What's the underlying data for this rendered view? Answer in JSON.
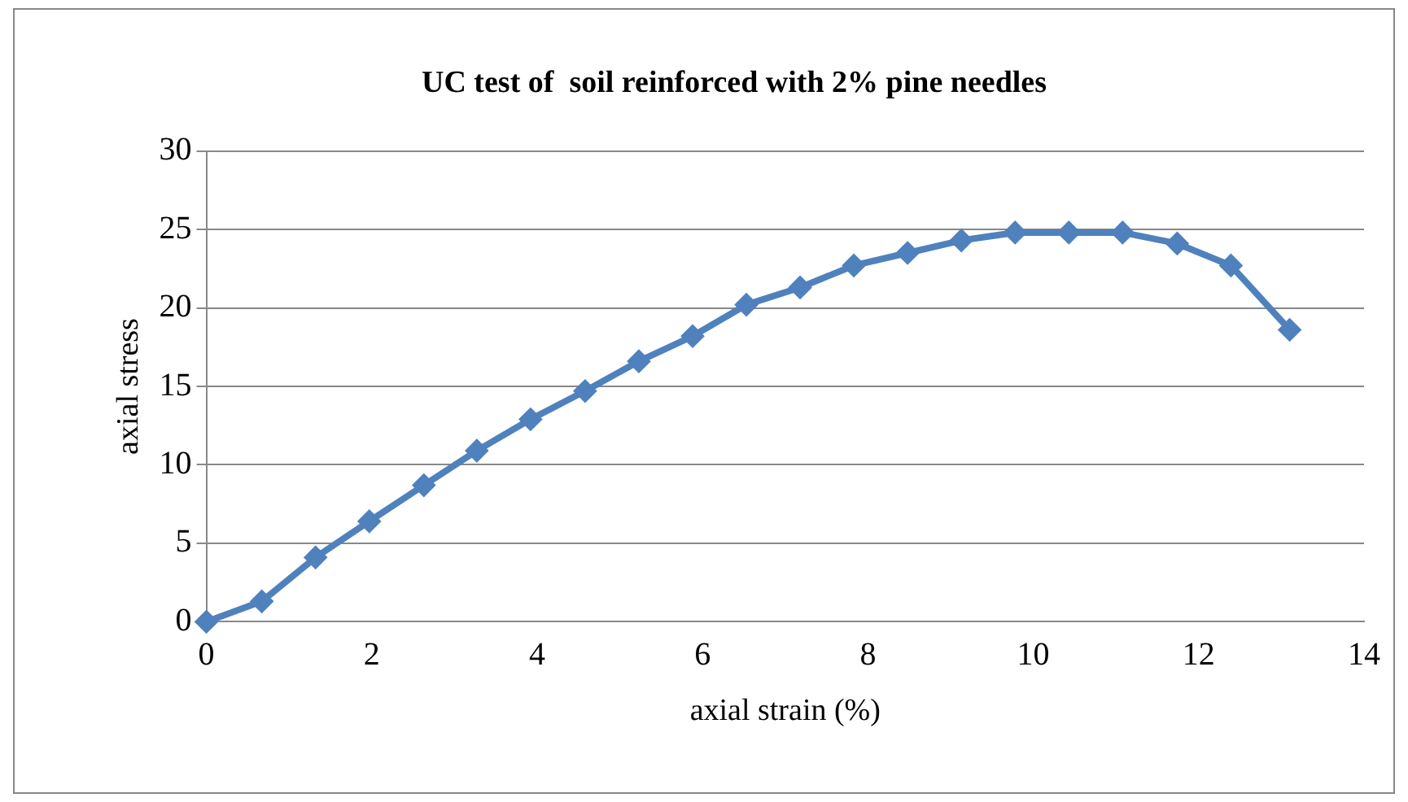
{
  "chart_data": {
    "type": "line",
    "title": "UC test of  soil reinforced with 2% pine needles",
    "xlabel": "axial strain (%)",
    "ylabel": "axial stress",
    "x": [
      0,
      0.67,
      1.32,
      1.97,
      2.63,
      3.27,
      3.92,
      4.58,
      5.23,
      5.88,
      6.53,
      7.18,
      7.83,
      8.48,
      9.13,
      9.78,
      10.43,
      11.08,
      11.74,
      12.39,
      13.1
    ],
    "series": [
      {
        "color": "#4f81bd",
        "values": [
          0,
          1.3,
          4.1,
          6.4,
          8.7,
          10.9,
          12.9,
          14.7,
          16.6,
          18.2,
          20.2,
          21.3,
          22.7,
          23.5,
          24.3,
          24.8,
          24.8,
          24.8,
          24.1,
          22.7,
          18.6
        ]
      }
    ],
    "xlim": [
      0,
      14
    ],
    "xticks": [
      0,
      2,
      4,
      6,
      8,
      10,
      12,
      14
    ],
    "ylim": [
      0,
      30
    ],
    "yticks": [
      0,
      5,
      10,
      15,
      20,
      25,
      30
    ],
    "grid": "y",
    "legend": false,
    "marker": "diamond",
    "line_style": "solid"
  }
}
